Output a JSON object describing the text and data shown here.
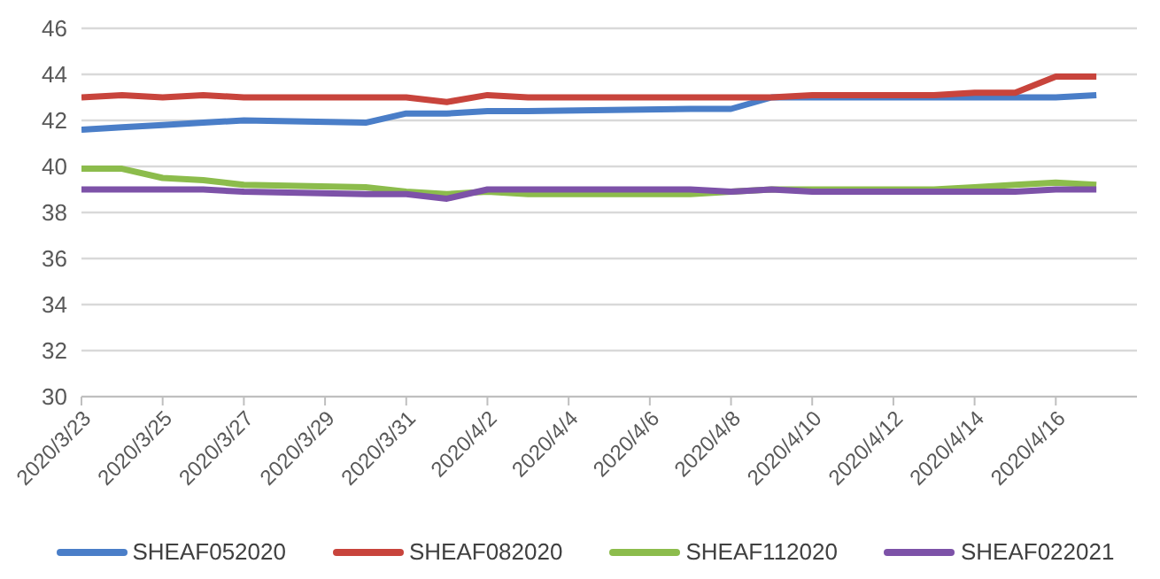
{
  "chart_data": {
    "type": "line",
    "x": [
      "2020-03-23",
      "2020-03-24",
      "2020-03-25",
      "2020-03-26",
      "2020-03-27",
      "2020-03-30",
      "2020-03-31",
      "2020-04-01",
      "2020-04-02",
      "2020-04-03",
      "2020-04-07",
      "2020-04-08",
      "2020-04-09",
      "2020-04-10",
      "2020-04-13",
      "2020-04-14",
      "2020-04-15",
      "2020-04-16",
      "2020-04-17"
    ],
    "series": [
      {
        "name": "SHEAF052020",
        "color": "#4a7ec8",
        "values": [
          41.6,
          41.7,
          41.8,
          41.9,
          42.0,
          41.9,
          42.3,
          42.3,
          42.4,
          42.4,
          42.5,
          42.5,
          43.0,
          43.0,
          43.0,
          43.0,
          43.0,
          43.0,
          43.1
        ]
      },
      {
        "name": "SHEAF082020",
        "color": "#c8443c",
        "values": [
          43.0,
          43.1,
          43.0,
          43.1,
          43.0,
          43.0,
          43.0,
          42.8,
          43.1,
          43.0,
          43.0,
          43.0,
          43.0,
          43.1,
          43.1,
          43.2,
          43.2,
          43.9,
          43.9
        ]
      },
      {
        "name": "SHEAF112020",
        "color": "#8cbc4c",
        "values": [
          39.9,
          39.9,
          39.5,
          39.4,
          39.2,
          39.1,
          38.9,
          38.8,
          38.9,
          38.8,
          38.8,
          38.9,
          39.0,
          39.0,
          39.0,
          39.1,
          39.2,
          39.3,
          39.2
        ]
      },
      {
        "name": "SHEAF022021",
        "color": "#7d52a8",
        "values": [
          39.0,
          39.0,
          39.0,
          39.0,
          38.9,
          38.8,
          38.8,
          38.6,
          39.0,
          39.0,
          39.0,
          38.9,
          39.0,
          38.9,
          38.9,
          38.9,
          38.9,
          39.0,
          39.0
        ]
      }
    ],
    "xlim": [
      "2020-03-23",
      "2020-04-18"
    ],
    "xticks": [
      {
        "value": "2020-03-23",
        "label": "2020/3/23"
      },
      {
        "value": "2020-03-25",
        "label": "2020/3/25"
      },
      {
        "value": "2020-03-27",
        "label": "2020/3/27"
      },
      {
        "value": "2020-03-29",
        "label": "2020/3/29"
      },
      {
        "value": "2020-03-31",
        "label": "2020/3/31"
      },
      {
        "value": "2020-04-02",
        "label": "2020/4/2"
      },
      {
        "value": "2020-04-04",
        "label": "2020/4/4"
      },
      {
        "value": "2020-04-06",
        "label": "2020/4/6"
      },
      {
        "value": "2020-04-08",
        "label": "2020/4/8"
      },
      {
        "value": "2020-04-10",
        "label": "2020/4/10"
      },
      {
        "value": "2020-04-12",
        "label": "2020/4/12"
      },
      {
        "value": "2020-04-14",
        "label": "2020/4/14"
      },
      {
        "value": "2020-04-16",
        "label": "2020/4/16"
      }
    ],
    "ylim": [
      30,
      46
    ],
    "yticks": [
      30,
      32,
      34,
      36,
      38,
      40,
      42,
      44,
      46
    ],
    "grid": "y",
    "legend": "bottom",
    "marker": "none",
    "line_style": "solid"
  }
}
